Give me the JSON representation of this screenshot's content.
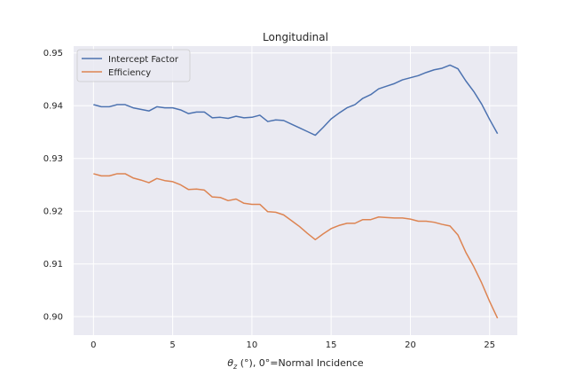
{
  "chart_data": {
    "type": "line",
    "title": "Longitudinal",
    "xlabel_theta": "θ",
    "xlabel_sub": "z",
    "xlabel_rest": " (°), 0°=Normal Incidence",
    "ylabel": "",
    "xlim": [
      -1.25,
      26.75
    ],
    "ylim": [
      0.8965,
      0.9513
    ],
    "xticks": [
      0,
      5,
      10,
      15,
      20,
      25
    ],
    "yticks": [
      0.9,
      0.91,
      0.92,
      0.93,
      0.94,
      0.95
    ],
    "yticklabels": [
      "0.90",
      "0.91",
      "0.92",
      "0.93",
      "0.94",
      "0.95"
    ],
    "grid": true,
    "legend_position": "top-left",
    "series": [
      {
        "name": "Intercept Factor",
        "color": "#4c72b0",
        "x": [
          0,
          0.5,
          1,
          1.5,
          2,
          2.5,
          3,
          3.5,
          4,
          4.5,
          5,
          5.5,
          6,
          6.5,
          7,
          7.5,
          8,
          8.5,
          9,
          9.5,
          10,
          10.5,
          11,
          11.5,
          12,
          12.5,
          13,
          13.5,
          14,
          14.5,
          15,
          15.5,
          16,
          16.5,
          17,
          17.5,
          18,
          18.5,
          19,
          19.5,
          20,
          20.5,
          21,
          21.5,
          22,
          22.5,
          23,
          23.5,
          24,
          24.5,
          25,
          25.5
        ],
        "values": [
          0.9402,
          0.9398,
          0.9398,
          0.9402,
          0.9402,
          0.9396,
          0.9393,
          0.939,
          0.9398,
          0.9396,
          0.9396,
          0.9392,
          0.9385,
          0.9388,
          0.9388,
          0.9377,
          0.9378,
          0.9376,
          0.938,
          0.9377,
          0.9378,
          0.9382,
          0.937,
          0.9373,
          0.9372,
          0.9365,
          0.9358,
          0.9351,
          0.9344,
          0.9359,
          0.9375,
          0.9386,
          0.9396,
          0.9402,
          0.9414,
          0.9421,
          0.9432,
          0.9437,
          0.9442,
          0.9449,
          0.9453,
          0.9457,
          0.9463,
          0.9468,
          0.9471,
          0.9477,
          0.947,
          0.9447,
          0.9427,
          0.9403,
          0.9374,
          0.9347
        ]
      },
      {
        "name": "Efficiency",
        "color": "#dd8452",
        "x": [
          0,
          0.5,
          1,
          1.5,
          2,
          2.5,
          3,
          3.5,
          4,
          4.5,
          5,
          5.5,
          6,
          6.5,
          7,
          7.5,
          8,
          8.5,
          9,
          9.5,
          10,
          10.5,
          11,
          11.5,
          12,
          12.5,
          13,
          13.5,
          14,
          14.5,
          15,
          15.5,
          16,
          16.5,
          17,
          17.5,
          18,
          18.5,
          19,
          19.5,
          20,
          20.5,
          21,
          21.5,
          22,
          22.5,
          23,
          23.5,
          24,
          24.5,
          25,
          25.5
        ],
        "values": [
          0.9271,
          0.9267,
          0.9267,
          0.9271,
          0.9271,
          0.9263,
          0.9259,
          0.9254,
          0.9262,
          0.9258,
          0.9256,
          0.925,
          0.9241,
          0.9242,
          0.924,
          0.9227,
          0.9226,
          0.922,
          0.9223,
          0.9215,
          0.9213,
          0.9213,
          0.9199,
          0.9198,
          0.9193,
          0.9182,
          0.9171,
          0.9158,
          0.9146,
          0.9157,
          0.9167,
          0.9173,
          0.9177,
          0.9177,
          0.9184,
          0.9184,
          0.9189,
          0.9188,
          0.9187,
          0.9187,
          0.9185,
          0.9181,
          0.9181,
          0.9179,
          0.9175,
          0.9172,
          0.9155,
          0.9122,
          0.9095,
          0.9064,
          0.9029,
          0.8997
        ]
      }
    ]
  }
}
